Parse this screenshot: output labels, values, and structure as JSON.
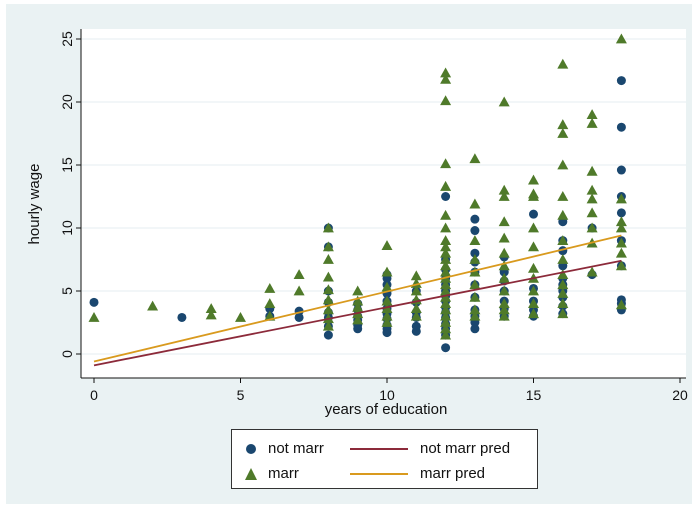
{
  "chart_data": {
    "type": "scatter",
    "xlabel": "years of education",
    "ylabel": "hourly wage",
    "xlim": [
      0,
      20
    ],
    "ylim": [
      -1.5,
      25.5
    ],
    "xticks": [
      "0",
      "5",
      "10",
      "15",
      "20"
    ],
    "yticks": [
      "0",
      "5",
      "10",
      "15",
      "20",
      "25"
    ],
    "grid": true,
    "legend_position": "bottom",
    "series": [
      {
        "name": "not marr",
        "kind": "scatter",
        "marker": "circle",
        "color": "#1a476f",
        "x": [
          0,
          3,
          6,
          6,
          7,
          7,
          8,
          8,
          8,
          8,
          8,
          8,
          8,
          8,
          9,
          9,
          9,
          9,
          9,
          9,
          10,
          10,
          10,
          10,
          10,
          10,
          10,
          10,
          10,
          10,
          10,
          11,
          11,
          11,
          11,
          11,
          11,
          12,
          12,
          12,
          12,
          12,
          12,
          12,
          12,
          12,
          12,
          12,
          12,
          12,
          12,
          12,
          13,
          13,
          13,
          13,
          13,
          13,
          13,
          13,
          13,
          13,
          13,
          14,
          14,
          14,
          14,
          14,
          14,
          14,
          15,
          15,
          15,
          15,
          15,
          16,
          16,
          16,
          16,
          16,
          16,
          16,
          16,
          16,
          16,
          17,
          17,
          18,
          18,
          18,
          18,
          18,
          18,
          18,
          18,
          18,
          18
        ],
        "y": [
          4.1,
          2.9,
          3.0,
          3.6,
          2.9,
          3.4,
          1.5,
          2.2,
          2.9,
          3.3,
          4.1,
          5.0,
          8.5,
          10.0,
          2.0,
          2.3,
          2.7,
          3.0,
          3.5,
          4.0,
          1.7,
          2.0,
          2.3,
          2.8,
          3.2,
          3.6,
          4.2,
          4.8,
          5.5,
          6.0,
          6.3,
          1.8,
          2.2,
          2.9,
          3.3,
          4.1,
          5.0,
          0.5,
          1.5,
          2.0,
          2.4,
          2.9,
          3.3,
          3.7,
          4.2,
          4.6,
          5.0,
          5.5,
          6.0,
          6.7,
          7.5,
          12.5,
          2.0,
          2.5,
          3.0,
          3.5,
          4.5,
          5.5,
          6.5,
          7.3,
          8.0,
          9.8,
          10.7,
          3.0,
          3.6,
          4.2,
          5.0,
          5.8,
          6.5,
          7.7,
          3.0,
          3.5,
          4.2,
          5.2,
          11.1,
          3.2,
          3.8,
          4.5,
          5.0,
          5.5,
          6.0,
          7.0,
          8.2,
          9.0,
          10.5,
          6.3,
          10.0,
          3.5,
          4.0,
          4.3,
          7.0,
          9.0,
          11.2,
          12.5,
          14.6,
          18.0,
          21.7
        ]
      },
      {
        "name": "marr",
        "kind": "scatter",
        "marker": "triangle",
        "color": "#4f7a2a",
        "x": [
          0,
          2,
          4,
          4,
          5,
          6,
          6,
          6,
          7,
          7,
          8,
          8,
          8,
          8,
          8,
          8,
          8,
          8,
          8,
          9,
          9,
          9,
          9,
          9,
          10,
          10,
          10,
          10,
          10,
          10,
          10,
          11,
          11,
          11,
          11,
          11,
          11,
          12,
          12,
          12,
          12,
          12,
          12,
          12,
          12,
          12,
          12,
          12,
          12,
          12,
          12,
          12,
          12,
          12,
          12,
          12,
          12,
          12,
          13,
          13,
          13,
          13,
          13,
          13,
          13,
          13,
          13,
          14,
          14,
          14,
          14,
          14,
          14,
          14,
          14,
          14,
          14,
          14,
          15,
          15,
          15,
          15,
          15,
          15,
          15,
          15,
          15,
          16,
          16,
          16,
          16,
          16,
          16,
          16,
          16,
          16,
          16,
          16,
          16,
          16,
          17,
          17,
          17,
          17,
          17,
          17,
          17,
          17,
          18,
          18,
          18,
          18,
          18,
          18,
          18,
          18
        ],
        "y": [
          2.9,
          3.8,
          3.1,
          3.6,
          2.9,
          3.0,
          4.0,
          5.2,
          5.0,
          6.3,
          2.2,
          2.8,
          3.5,
          4.3,
          5.1,
          6.1,
          7.5,
          8.5,
          10.0,
          2.7,
          3.2,
          3.7,
          4.2,
          5.0,
          2.5,
          3.0,
          3.6,
          4.2,
          5.3,
          6.5,
          8.6,
          3.0,
          3.6,
          4.3,
          5.0,
          5.6,
          6.2,
          15.1,
          1.5,
          2.0,
          2.5,
          3.0,
          3.5,
          4.0,
          4.5,
          5.0,
          5.5,
          6.0,
          6.5,
          7.0,
          7.5,
          8.0,
          8.5,
          9.0,
          10.0,
          11.0,
          13.3,
          20.1,
          3.0,
          3.5,
          4.5,
          5.5,
          6.5,
          7.5,
          9.0,
          11.9,
          15.5,
          3.0,
          3.5,
          4.0,
          5.0,
          6.0,
          7.0,
          8.0,
          9.2,
          10.5,
          12.5,
          20.0,
          3.2,
          4.0,
          5.0,
          6.0,
          6.8,
          8.5,
          10.0,
          12.5,
          13.8,
          3.2,
          4.0,
          4.8,
          5.5,
          6.3,
          7.5,
          9.0,
          11.0,
          12.5,
          15.0,
          17.5,
          18.2,
          23.0,
          6.5,
          8.8,
          10.0,
          11.2,
          12.3,
          13.0,
          14.5,
          19.0,
          3.9,
          7.0,
          8.0,
          8.8,
          10.0,
          10.5,
          12.3,
          25.0
        ],
        "extra_x": [
          12,
          12,
          14,
          15,
          17
        ],
        "extra_y": [
          22.3,
          21.8,
          13.0,
          12.7,
          18.3
        ]
      },
      {
        "name": "not marr pred",
        "kind": "line",
        "color": "#8c2a3a",
        "x": [
          0,
          18
        ],
        "y": [
          -0.9,
          7.4
        ]
      },
      {
        "name": "marr pred",
        "kind": "line",
        "color": "#d99a1e",
        "x": [
          0,
          18
        ],
        "y": [
          -0.6,
          9.4
        ]
      }
    ]
  }
}
